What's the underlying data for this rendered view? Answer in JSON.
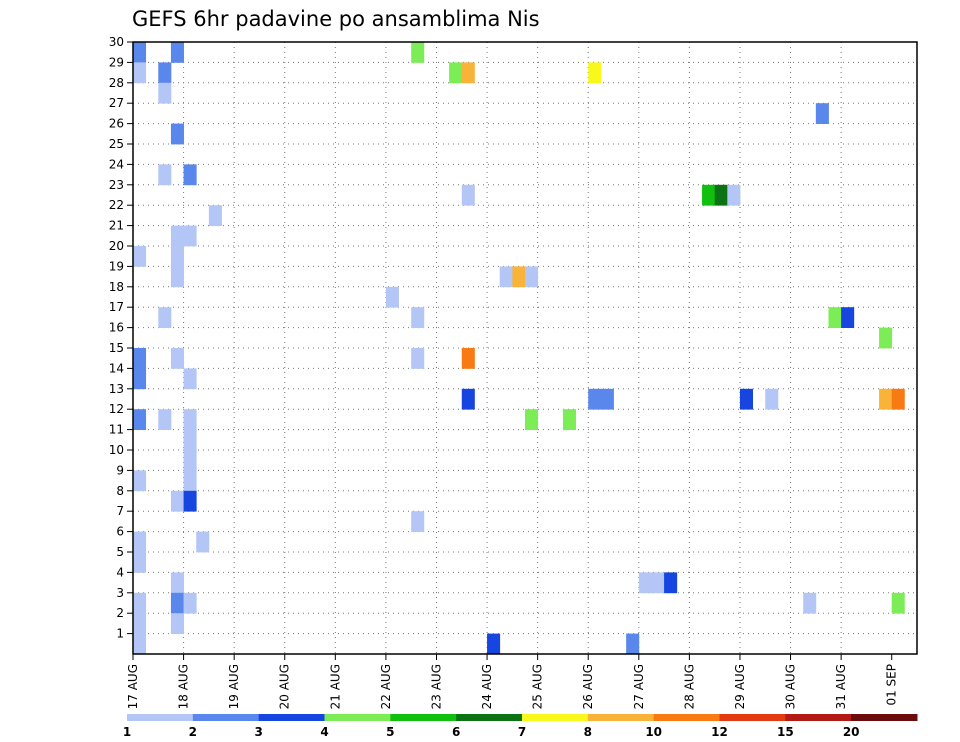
{
  "chart_data": {
    "type": "heatmap",
    "title": "GEFS 6hr padavine po ansamblima Nis",
    "xlabel": "",
    "ylabel": "",
    "x_ticks": [
      "17 AUG",
      "18 AUG",
      "19 AUG",
      "20 AUG",
      "21 AUG",
      "22 AUG",
      "23 AUG",
      "24 AUG",
      "25 AUG",
      "26 AUG",
      "27 AUG",
      "28 AUG",
      "29 AUG",
      "30 AUG",
      "31 AUG",
      "01 SEP"
    ],
    "y_ticks": [
      "1",
      "2",
      "3",
      "4",
      "5",
      "6",
      "7",
      "8",
      "9",
      "10",
      "11",
      "12",
      "13",
      "14",
      "15",
      "16",
      "17",
      "18",
      "19",
      "20",
      "21",
      "22",
      "23",
      "24",
      "25",
      "26",
      "27",
      "28",
      "29",
      "30"
    ],
    "xlim_steps": [
      0,
      62
    ],
    "ylim": [
      0,
      30
    ],
    "grid": true,
    "colorbar": {
      "bounds": [
        1,
        2,
        3,
        4,
        5,
        6,
        7,
        8,
        10,
        12,
        15,
        20,
        30
      ],
      "labels": [
        "1",
        "2",
        "3",
        "4",
        "5",
        "6",
        "7",
        "8",
        "10",
        "12",
        "15",
        "20"
      ],
      "colors": [
        "#b4c6f5",
        "#5a87ec",
        "#1645e0",
        "#7ded57",
        "#10c00f",
        "#0c7314",
        "#f8f81c",
        "#f9b339",
        "#f87a12",
        "#e43a12",
        "#b21a16",
        "#6b0d0d"
      ]
    },
    "cells_comment_units": "step = 6-hour index from 17 AUG 00Z; member = ensemble row; value = precipitation category lower bound",
    "cells": [
      {
        "step": 0,
        "member": 29,
        "value": 2
      },
      {
        "step": 0,
        "member": 28,
        "value": 1
      },
      {
        "step": 0,
        "member": 19,
        "value": 1
      },
      {
        "step": 0,
        "member": 14,
        "value": 2
      },
      {
        "step": 0,
        "member": 13,
        "value": 2
      },
      {
        "step": 0,
        "member": 11,
        "value": 2
      },
      {
        "step": 0,
        "member": 8,
        "value": 1
      },
      {
        "step": 0,
        "member": 5,
        "value": 1
      },
      {
        "step": 0,
        "member": 4,
        "value": 1
      },
      {
        "step": 0,
        "member": 2,
        "value": 1
      },
      {
        "step": 0,
        "member": 1,
        "value": 1
      },
      {
        "step": 0,
        "member": 0,
        "value": 1
      },
      {
        "step": 2,
        "member": 28,
        "value": 2
      },
      {
        "step": 2,
        "member": 27,
        "value": 1
      },
      {
        "step": 2,
        "member": 23,
        "value": 1
      },
      {
        "step": 2,
        "member": 16,
        "value": 1
      },
      {
        "step": 2,
        "member": 11,
        "value": 1
      },
      {
        "step": 3,
        "member": 29,
        "value": 2
      },
      {
        "step": 3,
        "member": 25,
        "value": 2
      },
      {
        "step": 3,
        "member": 20,
        "value": 1
      },
      {
        "step": 3,
        "member": 19,
        "value": 1
      },
      {
        "step": 3,
        "member": 18,
        "value": 1
      },
      {
        "step": 3,
        "member": 14,
        "value": 1
      },
      {
        "step": 3,
        "member": 7,
        "value": 1
      },
      {
        "step": 3,
        "member": 3,
        "value": 1
      },
      {
        "step": 3,
        "member": 2,
        "value": 2
      },
      {
        "step": 3,
        "member": 1,
        "value": 1
      },
      {
        "step": 4,
        "member": 23,
        "value": 2
      },
      {
        "step": 4,
        "member": 20,
        "value": 1
      },
      {
        "step": 4,
        "member": 13,
        "value": 1
      },
      {
        "step": 4,
        "member": 11,
        "value": 1
      },
      {
        "step": 4,
        "member": 10,
        "value": 1
      },
      {
        "step": 4,
        "member": 9,
        "value": 1
      },
      {
        "step": 4,
        "member": 8,
        "value": 1
      },
      {
        "step": 4,
        "member": 7,
        "value": 3
      },
      {
        "step": 4,
        "member": 2,
        "value": 1
      },
      {
        "step": 5,
        "member": 5,
        "value": 1
      },
      {
        "step": 6,
        "member": 21,
        "value": 1
      },
      {
        "step": 20,
        "member": 17,
        "value": 1
      },
      {
        "step": 22,
        "member": 29,
        "value": 4
      },
      {
        "step": 22,
        "member": 16,
        "value": 1
      },
      {
        "step": 22,
        "member": 14,
        "value": 1
      },
      {
        "step": 22,
        "member": 6,
        "value": 1
      },
      {
        "step": 25,
        "member": 28,
        "value": 4
      },
      {
        "step": 26,
        "member": 28,
        "value": 8
      },
      {
        "step": 26,
        "member": 22,
        "value": 1
      },
      {
        "step": 26,
        "member": 14,
        "value": 10
      },
      {
        "step": 26,
        "member": 12,
        "value": 3
      },
      {
        "step": 28,
        "member": 0,
        "value": 3
      },
      {
        "step": 29,
        "member": 18,
        "value": 1
      },
      {
        "step": 30,
        "member": 18,
        "value": 8
      },
      {
        "step": 31,
        "member": 18,
        "value": 1
      },
      {
        "step": 31,
        "member": 11,
        "value": 4
      },
      {
        "step": 34,
        "member": 11,
        "value": 4
      },
      {
        "step": 36,
        "member": 28,
        "value": 7
      },
      {
        "step": 36,
        "member": 12,
        "value": 2
      },
      {
        "step": 37,
        "member": 12,
        "value": 2
      },
      {
        "step": 39,
        "member": 0,
        "value": 2
      },
      {
        "step": 40,
        "member": 3,
        "value": 1
      },
      {
        "step": 41,
        "member": 3,
        "value": 1
      },
      {
        "step": 42,
        "member": 3,
        "value": 3
      },
      {
        "step": 45,
        "member": 22,
        "value": 5
      },
      {
        "step": 46,
        "member": 22,
        "value": 6
      },
      {
        "step": 47,
        "member": 22,
        "value": 1
      },
      {
        "step": 48,
        "member": 12,
        "value": 3
      },
      {
        "step": 50,
        "member": 12,
        "value": 1
      },
      {
        "step": 53,
        "member": 2,
        "value": 1
      },
      {
        "step": 54,
        "member": 26,
        "value": 2
      },
      {
        "step": 55,
        "member": 16,
        "value": 4
      },
      {
        "step": 56,
        "member": 16,
        "value": 3
      },
      {
        "step": 59,
        "member": 15,
        "value": 4
      },
      {
        "step": 59,
        "member": 12,
        "value": 8
      },
      {
        "step": 60,
        "member": 12,
        "value": 10
      },
      {
        "step": 60,
        "member": 2,
        "value": 4
      }
    ]
  }
}
